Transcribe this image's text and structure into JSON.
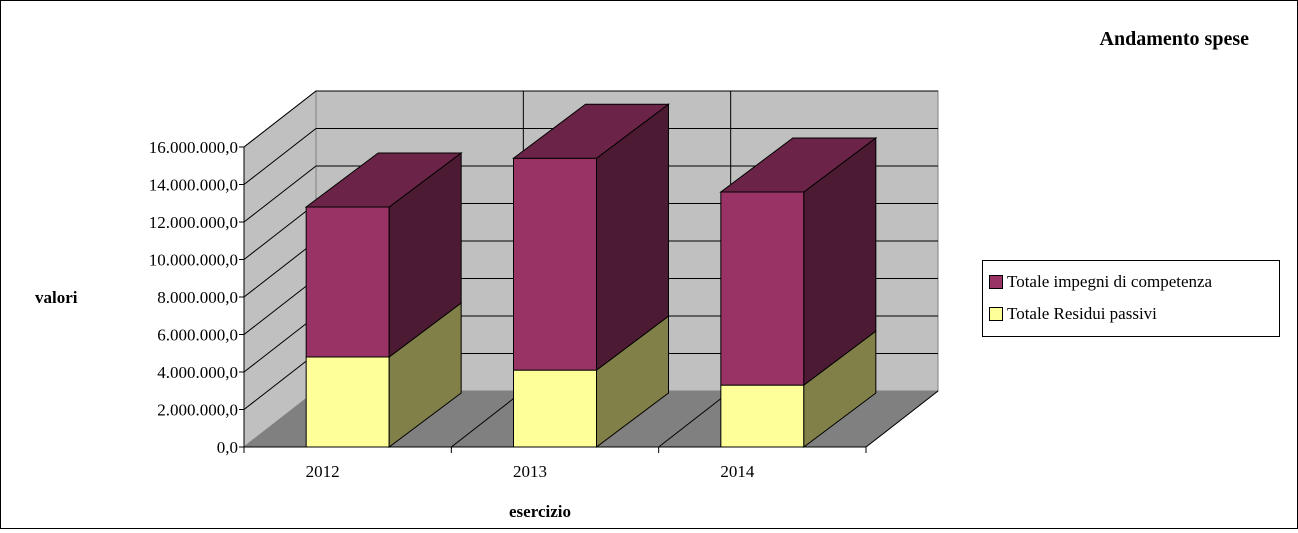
{
  "chart_data": {
    "type": "bar",
    "stacked": true,
    "three_d": true,
    "title": "Andamento spese",
    "xlabel": "esercizio",
    "ylabel": "valori",
    "categories": [
      "2012",
      "2013",
      "2014"
    ],
    "ylim": [
      0,
      16000000
    ],
    "yticks": [
      "0,0",
      "2.000.000,0",
      "4.000.000,0",
      "6.000.000,0",
      "8.000.000,0",
      "10.000.000,0",
      "12.000.000,0",
      "14.000.000,0",
      "16.000.000,0"
    ],
    "series": [
      {
        "name": "Totale Residui passivi",
        "values": [
          4800000,
          4100000,
          3300000
        ],
        "color": "#ffff99",
        "side_color": "#808048"
      },
      {
        "name": "Totale impegni di competenza",
        "values": [
          8000000,
          11300000,
          10300000
        ],
        "color": "#993366",
        "side_color": "#4d1a33"
      }
    ],
    "legend_position": "right",
    "legend_order": [
      "Totale impegni di competenza",
      "Totale Residui passivi"
    ],
    "grid": true,
    "wall_color": "#c0c0c0",
    "floor_color": "#808080"
  }
}
